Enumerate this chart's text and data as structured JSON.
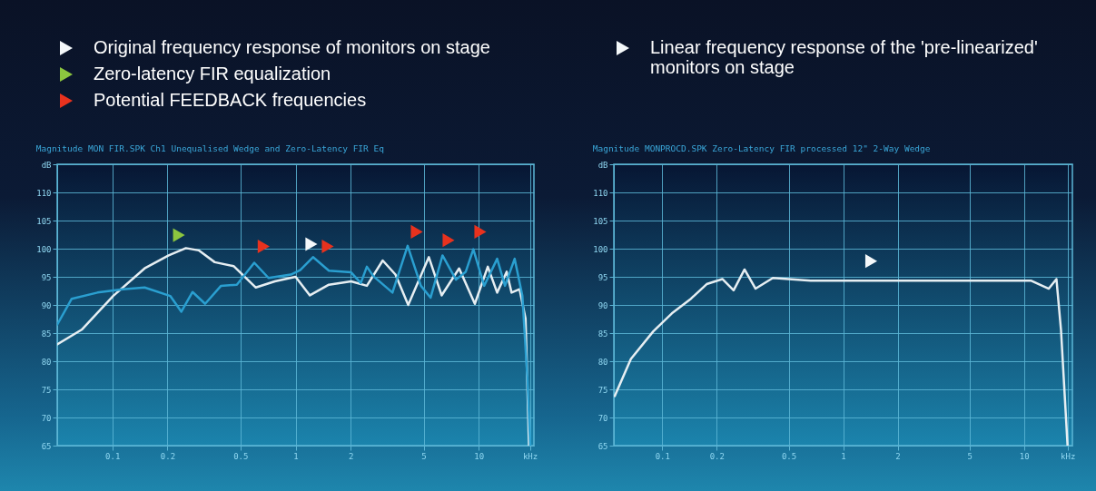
{
  "chart_data": [
    {
      "type": "line",
      "title": "Magnitude MON FIR.SPK Ch1 Unequalised Wedge and Zero-Latency FIR Eq",
      "xlim": [
        0.05,
        20
      ],
      "ylim": [
        65,
        115
      ],
      "xticks": [
        0.1,
        0.2,
        0.5,
        1,
        2,
        5,
        10,
        {
          "value": 19,
          "label": "kHz"
        }
      ],
      "yticks": [
        65,
        70,
        75,
        80,
        85,
        90,
        95,
        100,
        105,
        110,
        {
          "value": 115,
          "label": "dB"
        }
      ],
      "log": "x",
      "grid": true,
      "legend": "top left",
      "series": [
        {
          "color": "#e6eef2",
          "x": [
            0.05,
            0.068,
            0.101,
            0.15,
            0.203,
            0.252,
            0.296,
            0.362,
            0.459,
            0.607,
            0.771,
            1.0,
            1.197,
            1.52,
            2.01,
            2.45,
            2.99,
            3.51,
            4.12,
            5.34,
            6.27,
            7.81,
            9.52,
            11.2,
            12.6,
            14.2,
            15.1,
            16.7,
            18.0,
            18.8
          ],
          "values": [
            83.0,
            85.6,
            91.6,
            96.5,
            98.8,
            100.1,
            99.7,
            97.6,
            96.9,
            93.1,
            94.2,
            95.0,
            91.7,
            93.6,
            94.2,
            93.4,
            97.9,
            95.4,
            90.0,
            98.5,
            91.7,
            96.5,
            90.2,
            96.8,
            92.2,
            95.9,
            92.2,
            92.8,
            87.6,
            65
          ]
        },
        {
          "color": "#2a9fd0",
          "x": [
            0.05,
            0.06,
            0.083,
            0.114,
            0.15,
            0.207,
            0.238,
            0.274,
            0.321,
            0.392,
            0.478,
            0.595,
            0.712,
            0.942,
            1.06,
            1.245,
            1.52,
            2.01,
            2.27,
            2.45,
            2.66,
            3.38,
            4.09,
            4.83,
            5.46,
            6.34,
            7.51,
            8.49,
            9.34,
            10.7,
            12.6,
            13.9,
            15.7,
            17.3,
            18.4,
            19.1
          ],
          "values": [
            86.5,
            91.1,
            92.2,
            92.8,
            93.1,
            91.6,
            88.8,
            92.3,
            90.2,
            93.4,
            93.6,
            97.5,
            94.8,
            95.4,
            96.2,
            98.5,
            96.1,
            95.8,
            93.9,
            96.8,
            95.1,
            92.2,
            100.5,
            93.4,
            91.3,
            98.8,
            94.5,
            95.9,
            99.9,
            93.4,
            98.2,
            93.4,
            98.2,
            91.6,
            77.3,
            65
          ]
        },
        {
          "type": "scatter",
          "name": "Original frequency response of monitors on stage",
          "color": "#f4f8fa",
          "marker": "triangle",
          "x": [
            1.22
          ],
          "values": [
            100.8
          ]
        },
        {
          "type": "scatter",
          "name": "Zero-latency FIR equalization",
          "color": "#8cc63f",
          "marker": "triangle",
          "x": [
            0.231
          ],
          "values": [
            102.4
          ]
        },
        {
          "type": "scatter",
          "name": "Potential FEEDBACK frequencies",
          "color": "#e8321e",
          "marker": "triangle",
          "x": [
            0.67,
            1.5,
            4.59,
            6.84,
            10.2
          ],
          "values": [
            100.4,
            100.4,
            103.0,
            101.5,
            103.0
          ]
        }
      ]
    },
    {
      "type": "line",
      "title": "Magnitude MONPROCD.SPK Zero-Latency FIR processed 12\" 2-Way Wedge",
      "xlim": [
        0.054,
        18.5
      ],
      "ylim": [
        65,
        115
      ],
      "xticks": [
        0.1,
        0.2,
        0.5,
        1,
        2,
        5,
        10,
        {
          "value": 17.4,
          "label": "kHz"
        }
      ],
      "yticks": [
        65,
        70,
        75,
        80,
        85,
        90,
        95,
        100,
        105,
        110,
        {
          "value": 115,
          "label": "dB"
        }
      ],
      "log": "x",
      "grid": true,
      "legend": "top left",
      "series": [
        {
          "color": "#e6eef2",
          "x": [
            0.0546,
            0.0671,
            0.0892,
            0.113,
            0.144,
            0.176,
            0.215,
            0.248,
            0.285,
            0.328,
            0.409,
            0.662,
            1.0,
            2.2,
            4.92,
            10.97,
            13.7,
            15.1,
            16.0,
            17.4
          ],
          "values": [
            73.8,
            80.4,
            85.3,
            88.5,
            91.1,
            93.7,
            94.6,
            92.6,
            96.3,
            92.9,
            94.8,
            94.3,
            94.3,
            94.3,
            94.3,
            94.3,
            92.9,
            94.6,
            85.6,
            65
          ]
        },
        {
          "type": "scatter",
          "name": "Linear frequency response of the 'pre-linearized' monitors on stage",
          "color": "#f4f8fa",
          "marker": "triangle",
          "x": [
            1.43
          ],
          "values": [
            97.8
          ]
        }
      ]
    }
  ]
}
